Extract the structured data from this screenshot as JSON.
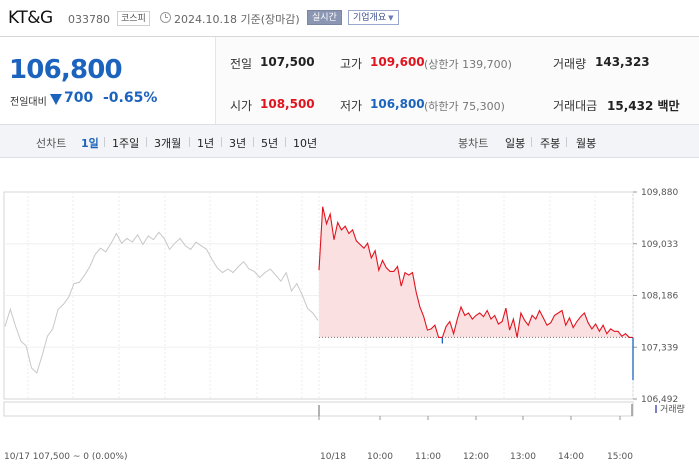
{
  "header": {
    "name": "KT&G",
    "code": "033780",
    "market": "코스피",
    "as_of": "2024.10.18  기준(장마감)",
    "realtime_label": "실시간",
    "company_label": "기업개요"
  },
  "quote": {
    "price": "106,800",
    "change_label": "전일대비",
    "change_abs": "700",
    "change_pct": "-0.65%",
    "prev_close_label": "전일",
    "prev_close": "107,500",
    "high_label": "고가",
    "high": "109,600",
    "upper_limit": "(상한가 139,700)",
    "volume_label": "거래량",
    "volume": "143,323",
    "open_label": "시가",
    "open": "108,500",
    "low_label": "저가",
    "low": "106,800",
    "lower_limit": "(하한가 75,300)",
    "amount_label": "거래대금",
    "amount": "15,432 백만"
  },
  "periods": {
    "line_label": "선차트",
    "line_options": [
      "1일",
      "1주일",
      "3개월",
      "1년",
      "3년",
      "5년",
      "10년"
    ],
    "active": "1일",
    "candle_label": "봉차트",
    "candle_options": [
      "일봉",
      "주봉",
      "월봉"
    ]
  },
  "colors": {
    "up": "#e0141e",
    "down": "#1c63bd",
    "prev_day_line": "#c8c8c8",
    "fill_up": "#fbe0e2"
  },
  "chart_data": {
    "type": "line",
    "y_ticks": [
      "109,880",
      "109,033",
      "108,186",
      "107,339",
      "106,492"
    ],
    "ylim": [
      106492,
      109880
    ],
    "x_ticks": [
      "10/18",
      "10:00",
      "11:00",
      "12:00",
      "13:00",
      "14:00",
      "15:00"
    ],
    "prev_close": 107500,
    "prev_day_caption": "10/17  107,500 ~ 0 (0.00%)",
    "volume_label": "거래량",
    "series": [
      {
        "values": [
          107680,
          107960,
          107680,
          107440,
          107360,
          107000,
          106920,
          107200,
          107520,
          107640,
          107960,
          108040,
          108160,
          108380,
          108400,
          108520,
          108660,
          108860,
          108960,
          108900,
          109040,
          109200,
          109040,
          109120,
          109060,
          109180,
          109020,
          109160,
          109100,
          109220,
          109120,
          108940,
          109040,
          109120,
          109000,
          108940,
          109060,
          109000,
          108940,
          108780,
          108640,
          108560,
          108620,
          108560,
          108660,
          108740,
          108620,
          108580,
          108480,
          108560,
          108620,
          108520,
          108420,
          108560,
          108260,
          108380,
          108200,
          107980,
          107900,
          107780
        ]
      },
      {
        "values": [
          108600,
          109640,
          109360,
          109520,
          109100,
          109380,
          109260,
          109320,
          109200,
          109260,
          109080,
          109020,
          108960,
          109040,
          108800,
          108920,
          108600,
          108760,
          108640,
          108580,
          108580,
          108660,
          108340,
          108560,
          108520,
          108560,
          108240,
          108000,
          107840,
          107620,
          107640,
          107700,
          107500,
          107400,
          107680,
          107760,
          107560,
          107800,
          108000,
          107860,
          107900,
          107800,
          107860,
          107900,
          107840,
          107940,
          107800,
          107860,
          107720,
          107760,
          107980,
          107620,
          107800,
          107500,
          107900,
          107780,
          107700,
          107860,
          107800,
          107940,
          107820,
          107700,
          107740,
          107860,
          107900,
          107940,
          107700,
          107820,
          107660,
          107760,
          107840,
          107900,
          107740,
          107640,
          107720,
          107600,
          107700,
          107560,
          107640,
          107600,
          107600,
          107520,
          107560,
          107500,
          106800
        ]
      }
    ]
  }
}
